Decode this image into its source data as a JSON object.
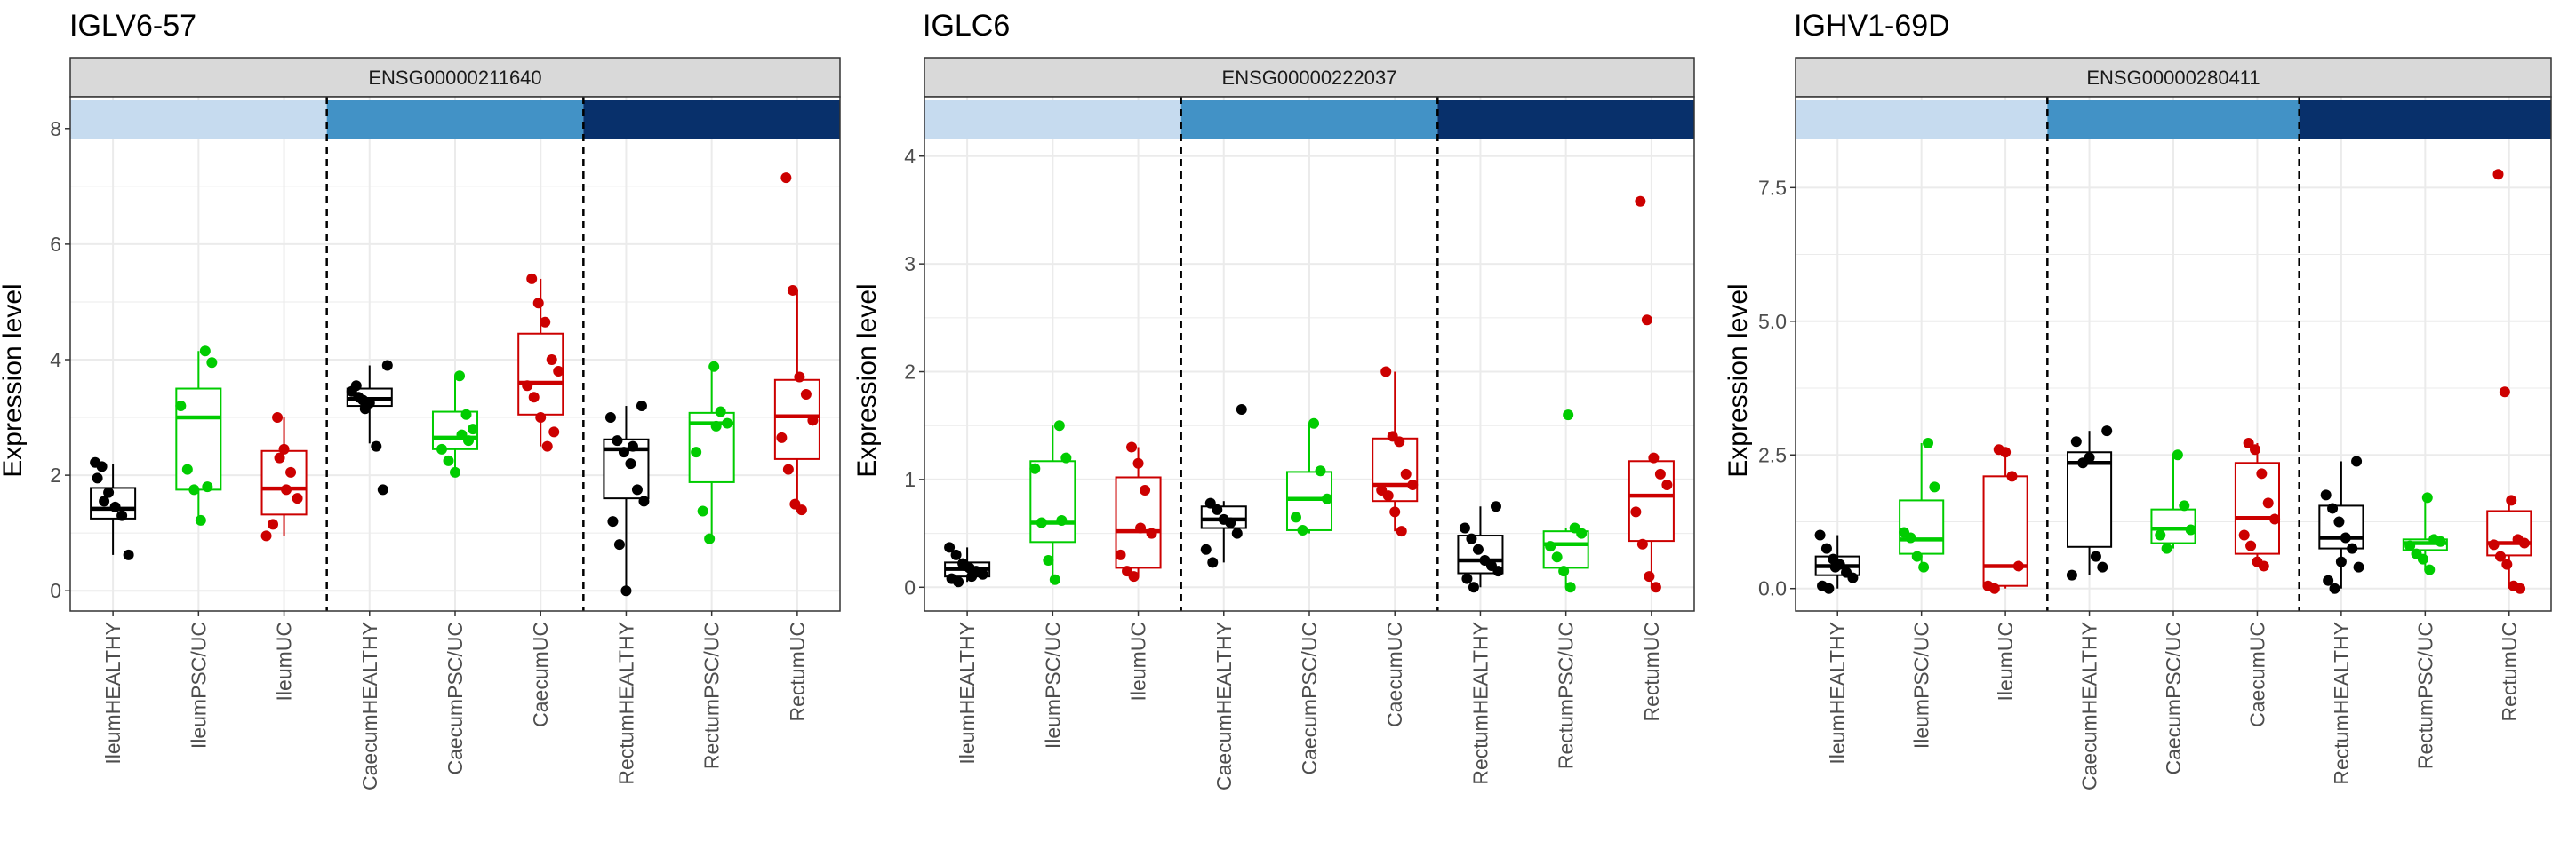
{
  "chart_data": [
    {
      "type": "box",
      "title": "IGLV6-57",
      "strip_label": "ENSG00000211640",
      "ylabel": "Expression level",
      "ylim": [
        -0.35,
        8.55
      ],
      "yticks": [
        0,
        2,
        4,
        6,
        8
      ],
      "tick_labels": [
        "0",
        "2",
        "4",
        "6",
        "8"
      ],
      "categories": [
        "IleumHEALTHY",
        "IleumPSC/UC",
        "IleumUC",
        "CaecumHEALTHY",
        "CaecumPSC/UC",
        "CaecumUC",
        "RectumHEALTHY",
        "RectumPSC/UC",
        "RectumUC"
      ],
      "boxes": [
        {
          "q1": 1.25,
          "median": 1.42,
          "q3": 1.78,
          "lo": 0.62,
          "hi": 2.2
        },
        {
          "q1": 1.75,
          "median": 3.0,
          "q3": 3.5,
          "lo": 1.22,
          "hi": 4.15
        },
        {
          "q1": 1.32,
          "median": 1.77,
          "q3": 2.42,
          "lo": 0.95,
          "hi": 3.0
        },
        {
          "q1": 3.2,
          "median": 3.32,
          "q3": 3.5,
          "lo": 2.55,
          "hi": 3.9
        },
        {
          "q1": 2.45,
          "median": 2.65,
          "q3": 3.1,
          "lo": 2.05,
          "hi": 3.72
        },
        {
          "q1": 3.05,
          "median": 3.6,
          "q3": 4.45,
          "lo": 2.5,
          "hi": 5.4
        },
        {
          "q1": 1.6,
          "median": 2.45,
          "q3": 2.62,
          "lo": 0.0,
          "hi": 3.2
        },
        {
          "q1": 1.88,
          "median": 2.9,
          "q3": 3.08,
          "lo": 0.9,
          "hi": 3.88
        },
        {
          "q1": 2.28,
          "median": 3.02,
          "q3": 3.65,
          "lo": 1.4,
          "hi": 5.2
        }
      ],
      "points": [
        [
          2.22,
          2.15,
          1.7,
          1.45,
          1.3,
          0.62,
          1.95,
          1.55
        ],
        [
          4.15,
          3.95,
          3.2,
          2.1,
          1.75,
          1.22,
          1.8
        ],
        [
          3.0,
          2.45,
          2.05,
          1.6,
          0.95,
          1.15,
          2.3,
          1.75
        ],
        [
          3.9,
          3.55,
          3.3,
          3.25,
          2.5,
          1.75,
          3.45,
          3.35,
          3.15
        ],
        [
          3.72,
          3.05,
          2.8,
          2.45,
          2.25,
          2.05,
          2.7,
          2.6
        ],
        [
          5.4,
          4.98,
          4.65,
          4.0,
          3.8,
          3.55,
          3.35,
          3.0,
          2.5,
          2.75
        ],
        [
          3.2,
          3.0,
          2.6,
          2.4,
          2.2,
          1.75,
          1.55,
          1.2,
          0.8,
          0.0,
          2.5
        ],
        [
          3.88,
          3.1,
          2.9,
          2.4,
          1.38,
          0.9,
          2.85
        ],
        [
          7.15,
          5.2,
          3.7,
          3.4,
          2.95,
          2.65,
          2.1,
          1.5,
          1.4
        ]
      ]
    },
    {
      "type": "box",
      "title": "IGLC6",
      "strip_label": "ENSG00000222037",
      "ylabel": "Expression level",
      "ylim": [
        -0.22,
        4.55
      ],
      "yticks": [
        0,
        1,
        2,
        3,
        4
      ],
      "tick_labels": [
        "0",
        "1",
        "2",
        "3",
        "4"
      ],
      "categories": [
        "IleumHEALTHY",
        "IleumPSC/UC",
        "IleumUC",
        "CaecumHEALTHY",
        "CaecumPSC/UC",
        "CaecumUC",
        "RectumHEALTHY",
        "RectumPSC/UC",
        "RectumUC"
      ],
      "boxes": [
        {
          "q1": 0.1,
          "median": 0.17,
          "q3": 0.23,
          "lo": 0.05,
          "hi": 0.37
        },
        {
          "q1": 0.42,
          "median": 0.6,
          "q3": 1.17,
          "lo": 0.07,
          "hi": 1.5
        },
        {
          "q1": 0.18,
          "median": 0.52,
          "q3": 1.02,
          "lo": 0.1,
          "hi": 1.3
        },
        {
          "q1": 0.55,
          "median": 0.63,
          "q3": 0.75,
          "lo": 0.23,
          "hi": 0.8
        },
        {
          "q1": 0.53,
          "median": 0.82,
          "q3": 1.07,
          "lo": 0.5,
          "hi": 1.52
        },
        {
          "q1": 0.8,
          "median": 0.95,
          "q3": 1.38,
          "lo": 0.52,
          "hi": 2.0
        },
        {
          "q1": 0.13,
          "median": 0.25,
          "q3": 0.48,
          "lo": 0.0,
          "hi": 0.75
        },
        {
          "q1": 0.18,
          "median": 0.4,
          "q3": 0.52,
          "lo": 0.0,
          "hi": 0.55
        },
        {
          "q1": 0.43,
          "median": 0.85,
          "q3": 1.17,
          "lo": 0.0,
          "hi": 1.2
        }
      ],
      "points": [
        [
          0.37,
          0.3,
          0.22,
          0.18,
          0.15,
          0.12,
          0.08,
          0.05,
          0.2,
          0.1
        ],
        [
          1.5,
          1.2,
          1.1,
          0.6,
          0.25,
          0.07,
          0.62
        ],
        [
          1.3,
          1.15,
          0.9,
          0.5,
          0.3,
          0.15,
          0.1,
          0.55
        ],
        [
          1.65,
          0.78,
          0.72,
          0.63,
          0.6,
          0.5,
          0.35,
          0.23
        ],
        [
          1.52,
          1.08,
          0.82,
          0.65,
          0.53
        ],
        [
          2.0,
          1.4,
          1.35,
          1.05,
          0.95,
          0.9,
          0.85,
          0.7,
          0.52
        ],
        [
          0.75,
          0.55,
          0.45,
          0.35,
          0.25,
          0.2,
          0.15,
          0.08,
          0.0
        ],
        [
          1.6,
          0.55,
          0.5,
          0.38,
          0.28,
          0.15,
          0.0
        ],
        [
          3.58,
          2.48,
          1.2,
          1.05,
          0.95,
          0.7,
          0.4,
          0.1,
          0.0
        ]
      ]
    },
    {
      "type": "box",
      "title": "IGHV1-69D",
      "strip_label": "ENSG00000280411",
      "ylabel": "Expression level",
      "ylim": [
        -0.42,
        9.2
      ],
      "yticks": [
        0,
        2.5,
        5,
        7.5
      ],
      "tick_labels": [
        "0.0",
        "2.5",
        "5.0",
        "7.5"
      ],
      "categories": [
        "IleumHEALTHY",
        "IleumPSC/UC",
        "IleumUC",
        "CaecumHEALTHY",
        "CaecumPSC/UC",
        "CaecumUC",
        "RectumHEALTHY",
        "RectumPSC/UC",
        "RectumUC"
      ],
      "boxes": [
        {
          "q1": 0.25,
          "median": 0.42,
          "q3": 0.6,
          "lo": 0.0,
          "hi": 1.0
        },
        {
          "q1": 0.65,
          "median": 0.92,
          "q3": 1.65,
          "lo": 0.4,
          "hi": 2.72
        },
        {
          "q1": 0.05,
          "median": 0.42,
          "q3": 2.1,
          "lo": 0.0,
          "hi": 2.6
        },
        {
          "q1": 0.78,
          "median": 2.35,
          "q3": 2.55,
          "lo": 0.25,
          "hi": 2.95
        },
        {
          "q1": 0.85,
          "median": 1.12,
          "q3": 1.48,
          "lo": 0.75,
          "hi": 2.5
        },
        {
          "q1": 0.65,
          "median": 1.32,
          "q3": 2.35,
          "lo": 0.42,
          "hi": 2.72
        },
        {
          "q1": 0.75,
          "median": 0.95,
          "q3": 1.55,
          "lo": 0.0,
          "hi": 2.38
        },
        {
          "q1": 0.72,
          "median": 0.85,
          "q3": 0.92,
          "lo": 0.35,
          "hi": 1.7
        },
        {
          "q1": 0.62,
          "median": 0.85,
          "q3": 1.45,
          "lo": 0.0,
          "hi": 1.65
        }
      ],
      "points": [
        [
          1.0,
          0.75,
          0.55,
          0.45,
          0.3,
          0.2,
          0.05,
          0.0,
          0.4
        ],
        [
          2.72,
          1.9,
          1.05,
          0.95,
          0.6,
          0.4
        ],
        [
          2.6,
          2.55,
          2.1,
          0.42,
          0.05,
          0.0
        ],
        [
          2.95,
          2.75,
          2.35,
          2.45,
          0.6,
          0.4,
          0.25
        ],
        [
          2.5,
          1.55,
          1.1,
          1.0,
          0.75
        ],
        [
          2.72,
          2.6,
          2.15,
          1.6,
          1.3,
          1.0,
          0.8,
          0.5,
          0.42
        ],
        [
          2.38,
          1.75,
          1.5,
          1.25,
          0.95,
          0.75,
          0.4,
          0.15,
          0.0,
          0.5
        ],
        [
          1.7,
          0.92,
          0.88,
          0.8,
          0.65,
          0.55,
          0.35
        ],
        [
          7.75,
          3.68,
          1.65,
          0.92,
          0.85,
          0.82,
          0.6,
          0.45,
          0.05,
          0.0
        ]
      ]
    }
  ],
  "colors": {
    "group_palette": [
      "#000000",
      "#00cc00",
      "#cc0000"
    ],
    "region_bands": [
      "#c6dbef",
      "#4292c6",
      "#08306b"
    ],
    "strip_fill": "#d9d9d9",
    "panel_border": "#333333",
    "grid": "#ebebeb",
    "tick_text": "#4d4d4d"
  }
}
